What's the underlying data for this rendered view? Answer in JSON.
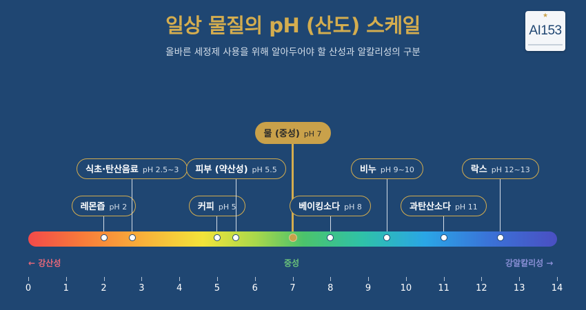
{
  "header": {
    "title": "일상 물질의 pH (산도) 스케일",
    "subtitle": "올바른 세정제 사용을 위해 알아두어야 할 산성과 알칼리성의 구분"
  },
  "logo": {
    "text": "AI153"
  },
  "scale": {
    "left_label": "← 강산성",
    "center_label": "중성",
    "right_label": "강알칼리성 →",
    "left_color": "#e8687a",
    "center_color": "#6ac27a",
    "right_color": "#8a8fd6",
    "ticks": [
      0,
      1,
      2,
      3,
      4,
      5,
      6,
      7,
      8,
      9,
      10,
      11,
      12,
      13,
      14
    ]
  },
  "markers": [
    {
      "name": "레몬즙",
      "ph_label": "pH 2",
      "ph": 2,
      "level": 1
    },
    {
      "name": "식초·탄산음료",
      "ph_label": "pH 2.5~3",
      "ph": 2.75,
      "level": 2
    },
    {
      "name": "커피",
      "ph_label": "pH 5",
      "ph": 5,
      "level": 1
    },
    {
      "name": "피부 (약산성)",
      "ph_label": "pH 5.5",
      "ph": 5.5,
      "level": 2
    },
    {
      "name": "물 (중성)",
      "ph_label": "pH 7",
      "ph": 7,
      "level": 3,
      "highlight": true
    },
    {
      "name": "베이킹소다",
      "ph_label": "pH 8",
      "ph": 8,
      "level": 1
    },
    {
      "name": "비누",
      "ph_label": "pH 9~10",
      "ph": 9.5,
      "level": 2
    },
    {
      "name": "과탄산소다",
      "ph_label": "pH 11",
      "ph": 11,
      "level": 1
    },
    {
      "name": "락스",
      "ph_label": "pH 12~13",
      "ph": 12.5,
      "level": 2
    }
  ],
  "colors": {
    "background": "#1f4672",
    "accent_gold": "#d4ad4f"
  }
}
